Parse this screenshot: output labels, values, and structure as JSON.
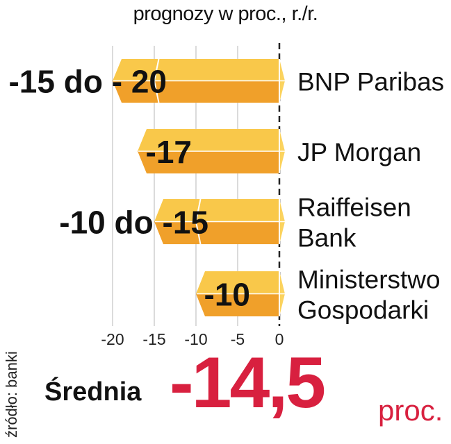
{
  "chart_data": {
    "type": "bar",
    "subtitle": "prognozy w proc., r./r.",
    "categories": [
      "BNP Paribas",
      "JP Morgan",
      "Raiffeisen Bank",
      "Ministerstwo Gospodarki"
    ],
    "category_lines": [
      [
        "BNP Paribas"
      ],
      [
        "JP Morgan"
      ],
      [
        "Raiffeisen",
        "Bank"
      ],
      [
        "Ministerstwo",
        "Gospodarki"
      ]
    ],
    "ranges": [
      [
        -15,
        -20
      ],
      [
        -17,
        -17
      ],
      [
        -10,
        -15
      ],
      [
        -10,
        -10
      ]
    ],
    "value_labels": [
      "-15 do - 20",
      "-17",
      "-10 do -15",
      "-10"
    ],
    "xlim": [
      -20,
      0
    ],
    "xticks": [
      -20,
      -15,
      -10,
      -5,
      0
    ],
    "grid": true,
    "colors": {
      "bar_face": "#f0a02a",
      "bar_top": "#f9c84a",
      "bar_side": "#fbd35f",
      "grid": "#cfcfcf"
    }
  },
  "source": "źródło: banki",
  "average": {
    "label": "Średnia",
    "value": "-14,5",
    "unit": "proc."
  }
}
